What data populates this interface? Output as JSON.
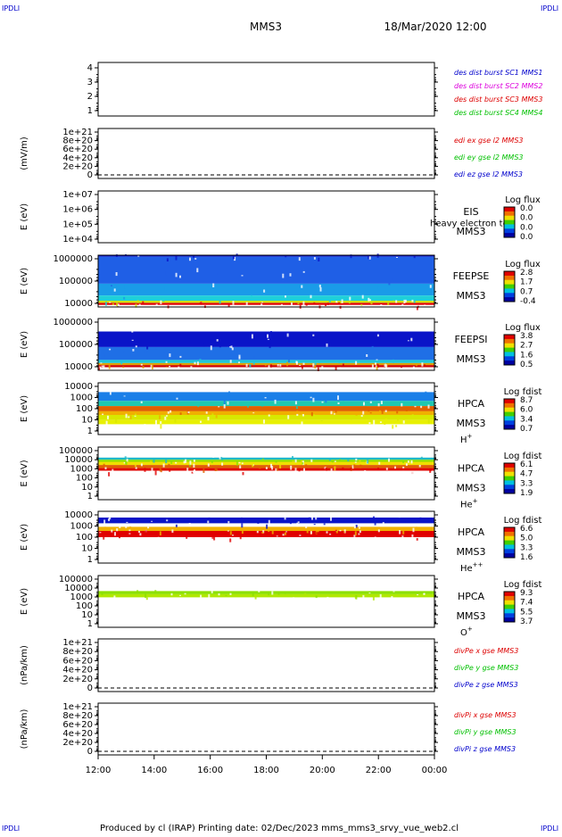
{
  "corner_labels": {
    "tl": "IPDLI",
    "tr": "IPDLI",
    "bl": "IPDLI",
    "br": "IPDLI"
  },
  "header": {
    "title": "MMS3",
    "datetime": "18/Mar/2020 12:00"
  },
  "footer": {
    "text": "Produced by cl (IRAP)   Printing date: 02/Dec/2023   mms_mms3_srvy_vue_web2.cl"
  },
  "colors": {
    "red": "#dd0000",
    "green": "#00c000",
    "blue": "#0000cc",
    "magenta": "#dd00dd"
  },
  "chart_data": {
    "type": "heatmap",
    "x_ticks": [
      "12:00",
      "14:00",
      "16:00",
      "18:00",
      "20:00",
      "22:00",
      "00:00"
    ],
    "panels": [
      {
        "id": "des-dist",
        "ylabel": "",
        "yticks": [
          "4",
          "3",
          "2",
          "1"
        ],
        "ylim": [
          0.5,
          4.5
        ],
        "legend": [
          {
            "text": "des dist burst SC1 MMS1",
            "color": "blue"
          },
          {
            "text": "des dist burst SC2 MMS2",
            "color": "magenta"
          },
          {
            "text": "des dist burst SC3 MMS3",
            "color": "red"
          },
          {
            "text": "des dist burst SC4 MMS4",
            "color": "green"
          }
        ]
      },
      {
        "id": "edi",
        "ylabel": "(mV/m)",
        "yticks": [
          "1e+21",
          "8e+20",
          "6e+20",
          "4e+20",
          "2e+20",
          "0"
        ],
        "ylim": [
          0,
          1e+21
        ],
        "legend": [
          {
            "text": "edi ex gse l2 MMS3",
            "color": "red"
          },
          {
            "text": "edi ey gse l2 MMS3",
            "color": "green"
          },
          {
            "text": "edi ez gse l2 MMS3",
            "color": "blue"
          }
        ]
      },
      {
        "id": "eis",
        "ylabel": "E (eV)",
        "yticks": [
          "1e+07",
          "1e+06",
          "1e+05",
          "1e+04"
        ],
        "scale": "log",
        "instrument": [
          "EIS",
          "MMS3"
        ],
        "overlay": "heavy electron to",
        "colorbar": {
          "title": "Log flux",
          "ticks": [
            "0.0",
            "0.0",
            "0.0",
            "0.0"
          ]
        }
      },
      {
        "id": "feepse",
        "ylabel": "E (eV)",
        "yticks": [
          "1000000",
          "100000",
          "10000"
        ],
        "scale": "log",
        "instrument": [
          "FEEPSE",
          "MMS3"
        ],
        "colorbar": {
          "title": "Log flux",
          "ticks": [
            "2.8",
            "1.7",
            "0.7",
            "-0.4"
          ]
        }
      },
      {
        "id": "feepsi",
        "ylabel": "E (eV)",
        "yticks": [
          "1000000",
          "100000",
          "10000"
        ],
        "scale": "log",
        "instrument": [
          "FEEPSI",
          "MMS3"
        ],
        "colorbar": {
          "title": "Log flux",
          "ticks": [
            "3.8",
            "2.7",
            "1.6",
            "0.5"
          ]
        }
      },
      {
        "id": "hpca-h",
        "ylabel": "E (eV)",
        "yticks": [
          "10000",
          "1000",
          "100",
          "10",
          "1"
        ],
        "scale": "log",
        "instrument": [
          "HPCA",
          "MMS3"
        ],
        "species": "H",
        "species_sup": "+",
        "colorbar": {
          "title": "Log fdist",
          "ticks": [
            "8.7",
            "6.0",
            "3.4",
            "0.7"
          ]
        }
      },
      {
        "id": "hpca-he",
        "ylabel": "E (eV)",
        "yticks": [
          "100000",
          "10000",
          "1000",
          "100",
          "10",
          "1"
        ],
        "scale": "log",
        "instrument": [
          "HPCA",
          "MMS3"
        ],
        "species": "He",
        "species_sup": "+",
        "colorbar": {
          "title": "Log fdist",
          "ticks": [
            "6.1",
            "4.7",
            "3.3",
            "1.9"
          ]
        }
      },
      {
        "id": "hpca-he2",
        "ylabel": "E (eV)",
        "yticks": [
          "10000",
          "1000",
          "100",
          "10",
          "1"
        ],
        "scale": "log",
        "instrument": [
          "HPCA",
          "MMS3"
        ],
        "species": "He",
        "species_sup": "++",
        "colorbar": {
          "title": "Log fdist",
          "ticks": [
            "6.6",
            "5.0",
            "3.3",
            "1.6"
          ]
        }
      },
      {
        "id": "hpca-o",
        "ylabel": "E (eV)",
        "yticks": [
          "100000",
          "10000",
          "1000",
          "100",
          "10",
          "1"
        ],
        "scale": "log",
        "instrument": [
          "HPCA",
          "MMS3"
        ],
        "species": "O",
        "species_sup": "+",
        "colorbar": {
          "title": "Log fdist",
          "ticks": [
            "9.3",
            "7.4",
            "5.5",
            "3.7"
          ]
        }
      },
      {
        "id": "divpe",
        "ylabel": "(nPa/km)",
        "yticks": [
          "1e+21",
          "8e+20",
          "6e+20",
          "4e+20",
          "2e+20",
          "0"
        ],
        "ylim": [
          0,
          1e+21
        ],
        "legend": [
          {
            "text": "divPe x gse MMS3",
            "color": "red"
          },
          {
            "text": "divPe y gse MMS3",
            "color": "green"
          },
          {
            "text": "divPe z gse MMS3",
            "color": "blue"
          }
        ]
      },
      {
        "id": "divpi",
        "ylabel": "(nPa/km)",
        "yticks": [
          "1e+21",
          "8e+20",
          "6e+20",
          "4e+20",
          "2e+20",
          "0"
        ],
        "ylim": [
          0,
          1e+21
        ],
        "legend": [
          {
            "text": "divPi x gse MMS3",
            "color": "red"
          },
          {
            "text": "divPi y gse MMS3",
            "color": "green"
          },
          {
            "text": "divPi z gse MMS3",
            "color": "blue"
          }
        ]
      }
    ],
    "spectrogram_bands": {
      "feepse": [
        {
          "from": 0.0,
          "to": 0.03,
          "color": "#0a14c8"
        },
        {
          "from": 0.03,
          "to": 0.55,
          "color": "#1f5fe6"
        },
        {
          "from": 0.55,
          "to": 0.78,
          "color": "#1a9be8"
        },
        {
          "from": 0.78,
          "to": 0.88,
          "color": "#1fd0d8"
        },
        {
          "from": 0.88,
          "to": 0.92,
          "color": "#cfe000"
        },
        {
          "from": 0.92,
          "to": 0.96,
          "color": "#e00000"
        }
      ],
      "feepsi": [
        {
          "from": 0.25,
          "to": 0.55,
          "color": "#0a14c8"
        },
        {
          "from": 0.55,
          "to": 0.8,
          "color": "#1f6fe6"
        },
        {
          "from": 0.8,
          "to": 0.86,
          "color": "#1fc8d8"
        },
        {
          "from": 0.86,
          "to": 0.9,
          "color": "#e0a000"
        },
        {
          "from": 0.9,
          "to": 0.94,
          "color": "#cc0000"
        }
      ],
      "hpca-h": [
        {
          "from": 0.18,
          "to": 0.35,
          "color": "#1a7fe8"
        },
        {
          "from": 0.35,
          "to": 0.45,
          "color": "#1fc8b0"
        },
        {
          "from": 0.45,
          "to": 0.55,
          "color": "#e06000"
        },
        {
          "from": 0.55,
          "to": 0.62,
          "color": "#f0b000"
        },
        {
          "from": 0.62,
          "to": 0.72,
          "color": "#d8e800"
        },
        {
          "from": 0.72,
          "to": 0.8,
          "color": "#e8f000"
        }
      ],
      "hpca-he": [
        {
          "from": 0.2,
          "to": 0.24,
          "color": "#1fb8c8"
        },
        {
          "from": 0.24,
          "to": 0.28,
          "color": "#8ce000"
        },
        {
          "from": 0.28,
          "to": 0.34,
          "color": "#f0e000"
        },
        {
          "from": 0.34,
          "to": 0.4,
          "color": "#e06000"
        },
        {
          "from": 0.4,
          "to": 0.45,
          "color": "#e00000"
        }
      ],
      "hpca-he2": [
        {
          "from": 0.12,
          "to": 0.23,
          "color": "#0a14c8"
        },
        {
          "from": 0.3,
          "to": 0.38,
          "color": "#f0b000"
        },
        {
          "from": 0.38,
          "to": 0.5,
          "color": "#e00000"
        }
      ],
      "hpca-o": [
        {
          "from": 0.3,
          "to": 0.36,
          "color": "#8ce000"
        },
        {
          "from": 0.36,
          "to": 0.42,
          "color": "#b0e800"
        }
      ]
    }
  }
}
